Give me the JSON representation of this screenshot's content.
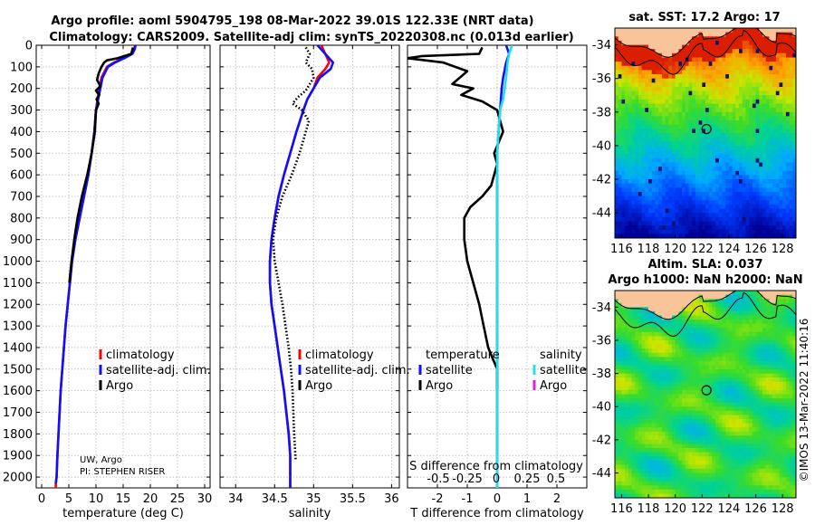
{
  "title_line1": "Argo profile: aoml 5904795_198 08-Mar-2022 39.01S 122.33E (NRT data)",
  "title_line2": "Climatology: CARS2009. Satellite-adj clim: synTS_20220308.nc (0.013d earlier)",
  "credit": "UW, Argo",
  "pi": "PI: STEPHEN RISER",
  "watermark": "©IMOS 13-Mar-2022 11:40:16",
  "colors": {
    "climatology": "#ff0000",
    "satellite": "#1010ff",
    "argo": "#000000",
    "sat_salinity": "#22ddee",
    "argo_salinity": "#dd22dd",
    "land": "#f9c49a"
  },
  "chart_data": [
    {
      "type": "line",
      "id": "temperature",
      "xlabel": "temperature (deg C)",
      "xlim": [
        -1,
        31
      ],
      "ylim": [
        2050,
        0
      ],
      "xticks": [
        0,
        5,
        10,
        15,
        20,
        25,
        30
      ],
      "yticks": [
        0,
        100,
        200,
        300,
        400,
        500,
        600,
        700,
        800,
        900,
        1000,
        1100,
        1200,
        1300,
        1400,
        1500,
        1600,
        1700,
        1800,
        1900,
        2000
      ],
      "grid": true,
      "legend": [
        "climatology",
        "satellite-adj. clim.",
        "Argo"
      ],
      "series": [
        {
          "name": "climatology",
          "style": "solid",
          "x": [
            17.2,
            17.0,
            16.6,
            15.0,
            13.3,
            12.0,
            11.0,
            10.6,
            10.3,
            10.0,
            9.7,
            9.2,
            8.6,
            7.8,
            7.0,
            6.2,
            5.6,
            5.2,
            4.8,
            4.4,
            4.1,
            3.8,
            3.5,
            3.3,
            3.1,
            2.9,
            2.75,
            2.65,
            2.6,
            2.6,
            2.6
          ],
          "y": [
            0,
            20,
            40,
            60,
            80,
            100,
            150,
            200,
            250,
            300,
            400,
            500,
            600,
            700,
            800,
            900,
            1000,
            1100,
            1200,
            1300,
            1400,
            1500,
            1600,
            1700,
            1800,
            1900,
            2000,
            2020,
            2030,
            2040,
            2050
          ]
        },
        {
          "name": "satellite-adj. clim.",
          "style": "solid",
          "x": [
            17.3,
            17.1,
            16.7,
            15.2,
            13.5,
            12.2,
            11.2,
            10.8,
            10.4,
            10.0,
            9.7,
            9.2,
            8.6,
            7.8,
            7.0,
            6.2,
            5.6,
            5.2,
            4.8,
            4.4,
            4.1,
            3.8,
            3.5,
            3.3,
            3.1,
            2.9,
            2.75,
            2.65,
            2.6
          ],
          "y": [
            0,
            20,
            40,
            60,
            80,
            100,
            150,
            200,
            250,
            300,
            400,
            500,
            600,
            700,
            800,
            900,
            1000,
            1100,
            1200,
            1300,
            1400,
            1500,
            1600,
            1700,
            1800,
            1900,
            2000,
            2020,
            2030
          ]
        },
        {
          "name": "Argo",
          "style": "solid",
          "x": [
            16.8,
            16.5,
            14.0,
            12.0,
            11.5,
            11.0,
            10.5,
            10.2,
            10.8,
            10.0,
            10.6,
            10.1,
            10.5,
            10.0,
            9.8,
            9.2,
            8.4,
            7.4,
            6.6,
            6.0,
            5.5,
            5.1
          ],
          "y": [
            10,
            40,
            60,
            70,
            80,
            100,
            130,
            160,
            190,
            210,
            230,
            250,
            270,
            300,
            400,
            500,
            600,
            700,
            800,
            900,
            1000,
            1100
          ]
        }
      ]
    },
    {
      "type": "line",
      "id": "salinity",
      "xlabel": "salinity",
      "xlim": [
        33.8,
        36.1
      ],
      "ylim": [
        2050,
        0
      ],
      "xticks": [
        34,
        34.5,
        35,
        35.5,
        36
      ],
      "xticklabels": [
        "34",
        "34.5",
        "35",
        "35.5",
        "36"
      ],
      "grid": true,
      "legend": [
        "climatology",
        "satellite-adj. clim.",
        "Argo"
      ],
      "series": [
        {
          "name": "climatology",
          "style": "solid",
          "x": [
            35.1,
            35.15,
            35.2,
            35.15,
            35.05,
            35.0,
            34.92,
            34.87,
            34.78,
            34.7,
            34.62,
            34.55,
            34.5,
            34.46,
            34.44,
            34.44,
            34.46,
            34.5,
            34.54,
            34.58,
            34.62,
            34.65,
            34.68,
            34.7,
            34.7
          ],
          "y": [
            0,
            40,
            80,
            110,
            150,
            200,
            250,
            300,
            400,
            500,
            600,
            700,
            800,
            900,
            1000,
            1100,
            1200,
            1300,
            1400,
            1500,
            1600,
            1700,
            1800,
            1900,
            2050
          ]
        },
        {
          "name": "satellite-adj. clim.",
          "style": "solid",
          "x": [
            35.05,
            35.15,
            35.25,
            35.22,
            35.08,
            35.0,
            34.92,
            34.87,
            34.78,
            34.7,
            34.62,
            34.55,
            34.5,
            34.46,
            34.44,
            34.44,
            34.46,
            34.5,
            34.54,
            34.58,
            34.62,
            34.65,
            34.68,
            34.7,
            34.7
          ],
          "y": [
            0,
            40,
            80,
            110,
            150,
            200,
            250,
            300,
            400,
            500,
            600,
            700,
            800,
            900,
            1000,
            1100,
            1200,
            1300,
            1400,
            1500,
            1600,
            1700,
            1800,
            1900,
            2050
          ]
        },
        {
          "name": "Argo",
          "style": "dotted",
          "x": [
            34.9,
            34.95,
            34.9,
            34.98,
            35.0,
            34.95,
            34.9,
            34.8,
            34.73,
            34.85,
            34.94,
            34.9,
            34.82,
            34.72,
            34.6,
            34.52,
            34.48,
            34.5,
            34.55,
            34.6,
            34.64,
            34.68,
            34.71,
            34.73,
            34.75,
            34.77
          ],
          "y": [
            10,
            40,
            80,
            110,
            150,
            180,
            210,
            240,
            270,
            300,
            350,
            400,
            500,
            600,
            700,
            800,
            900,
            1000,
            1100,
            1200,
            1300,
            1400,
            1500,
            1600,
            1800,
            1920
          ]
        }
      ]
    },
    {
      "type": "line",
      "id": "difference",
      "xlabel": "T difference from climatology",
      "top_label": "S difference from climatology",
      "xlim": [
        -3,
        3
      ],
      "ylim": [
        2050,
        0
      ],
      "xticks": [
        -2,
        -1,
        0,
        1,
        2
      ],
      "xticklabels": [
        "-2",
        "-1",
        "0",
        "1",
        "2"
      ],
      "top_ticklabels": [
        "-0.5",
        "-0.25",
        "0",
        "0.25",
        "0.5"
      ],
      "grid": true,
      "legend_left_title": "temperature",
      "legend_right_title": "salinity",
      "legend_left": [
        "satellite",
        "Argo"
      ],
      "legend_right": [
        "satellite",
        "Argo"
      ],
      "series": [
        {
          "name": "temperature satellite",
          "style": "solid",
          "x": [
            0.3,
            0.4,
            0.3,
            0.2,
            0.15,
            0.1,
            0.05,
            0.0,
            0.0,
            0.0,
            0.0
          ],
          "y": [
            0,
            40,
            80,
            150,
            200,
            300,
            400,
            500,
            600,
            800,
            2050
          ]
        },
        {
          "name": "temperature Argo",
          "style": "solid",
          "x": [
            -0.5,
            -0.6,
            -2.5,
            -3.0,
            -1.8,
            -1.0,
            -1.5,
            -0.8,
            -1.2,
            -0.5,
            0.0,
            0.2,
            -0.1,
            0.0,
            -0.1,
            -0.2,
            -0.5,
            -0.9,
            -1.1,
            -1.1,
            -1.0,
            -0.8,
            -0.6,
            -0.45,
            -0.3,
            -0.15,
            0.0,
            0.0
          ],
          "y": [
            10,
            40,
            50,
            60,
            80,
            120,
            180,
            200,
            230,
            260,
            300,
            400,
            500,
            550,
            600,
            650,
            700,
            750,
            800,
            900,
            1000,
            1100,
            1200,
            1300,
            1400,
            1450,
            1500,
            1600
          ]
        },
        {
          "name": "salinity satellite",
          "style": "solid",
          "x": [
            0.5,
            0.4,
            0.35,
            0.3,
            0.25,
            0.2,
            0.1,
            0.05,
            0.0,
            0.0,
            0.0
          ],
          "y": [
            0,
            40,
            80,
            150,
            200,
            250,
            300,
            400,
            500,
            700,
            2050
          ]
        },
        {
          "name": "salinity Argo",
          "style": "solid",
          "x": [],
          "y": []
        }
      ]
    },
    {
      "type": "heatmap",
      "id": "sst_map",
      "title": "sat. SST: 17.2 Argo: 17",
      "xlim": [
        115.5,
        129
      ],
      "ylim": [
        -45.5,
        -33
      ],
      "xticks": [
        116,
        118,
        120,
        122,
        124,
        126,
        128
      ],
      "yticks": [
        -34,
        -36,
        -38,
        -40,
        -42,
        -44
      ],
      "marker": {
        "lon": 122.33,
        "lat": -39.01
      }
    },
    {
      "type": "heatmap",
      "id": "sla_map",
      "title_line1": "Altim. SLA: 0.037",
      "title_line2": "Argo h1000: NaN h2000: NaN",
      "xlim": [
        115.5,
        129
      ],
      "ylim": [
        -45.5,
        -33
      ],
      "xticks": [
        116,
        118,
        120,
        122,
        124,
        126,
        128
      ],
      "yticks": [
        -34,
        -36,
        -38,
        -40,
        -42,
        -44
      ],
      "marker": {
        "lon": 122.33,
        "lat": -39.01
      }
    }
  ]
}
